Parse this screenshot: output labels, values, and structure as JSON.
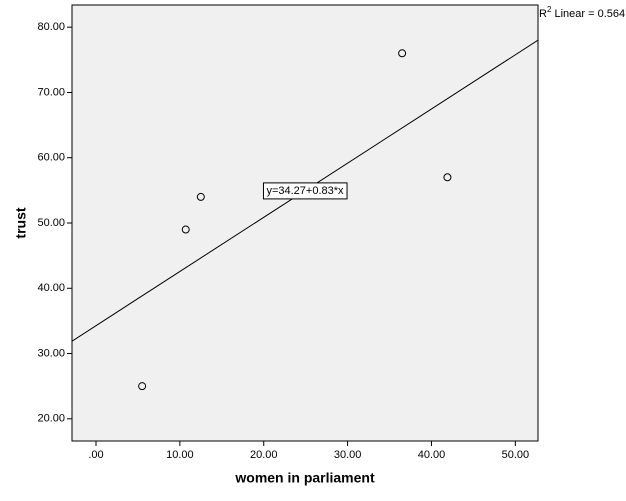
{
  "chart_data": {
    "type": "scatter",
    "x_label": "women in parliament",
    "y_label": "trust",
    "x": [
      5.5,
      10.7,
      12.5,
      36.5,
      41.9
    ],
    "values": [
      25,
      49,
      54,
      76,
      57
    ],
    "xlim": [
      -2.86,
      52.7
    ],
    "ylim": [
      16.6,
      83.4
    ],
    "xticks": [
      {
        "value": 0,
        "label": ".00"
      },
      {
        "value": 10,
        "label": "10.00"
      },
      {
        "value": 20,
        "label": "20.00"
      },
      {
        "value": 30,
        "label": "30.00"
      },
      {
        "value": 40,
        "label": "40.00"
      },
      {
        "value": 50,
        "label": "50.00"
      }
    ],
    "yticks": [
      {
        "value": 20,
        "label": "20.00"
      },
      {
        "value": 30,
        "label": "30.00"
      },
      {
        "value": 40,
        "label": "40.00"
      },
      {
        "value": 50,
        "label": "50.00"
      },
      {
        "value": 60,
        "label": "60.00"
      },
      {
        "value": 70,
        "label": "70.00"
      },
      {
        "value": 80,
        "label": "80.00"
      }
    ],
    "fit": {
      "intercept": 34.27,
      "slope": 0.83,
      "label": "y=34.27+0.83*x"
    },
    "r2_label": {
      "base": "R",
      "sup": "2",
      "text": " Linear = 0.564"
    },
    "plot_background": "#f0f0f0",
    "color": "#000000"
  }
}
